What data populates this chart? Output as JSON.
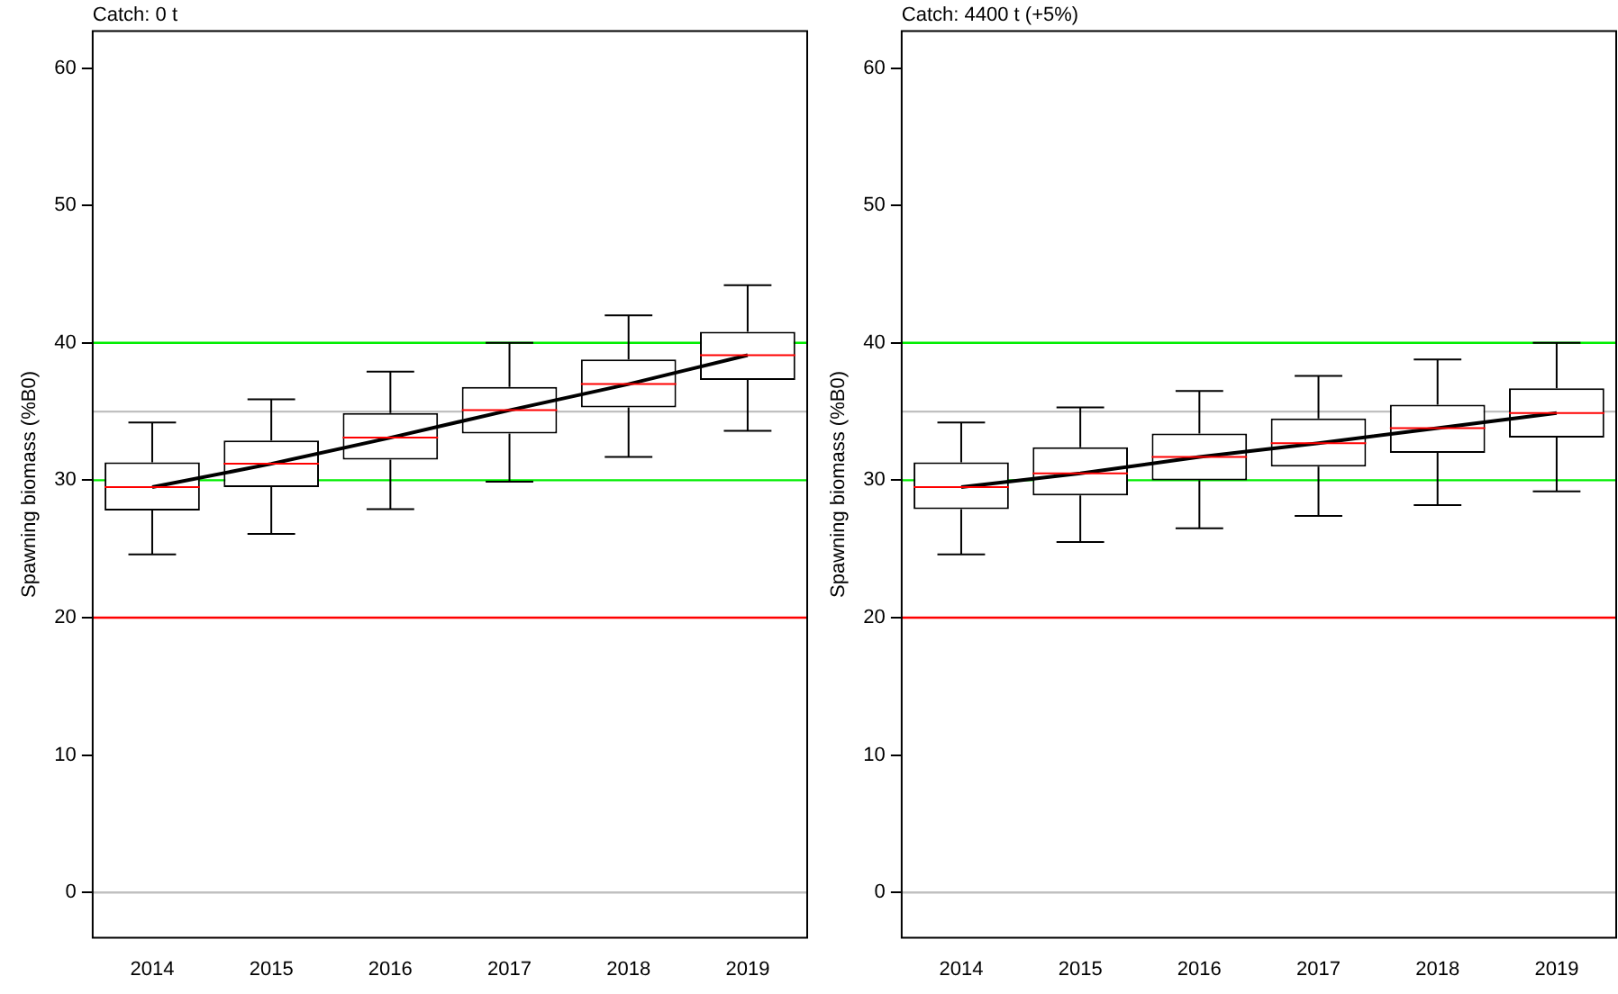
{
  "chart_data": [
    {
      "type": "box",
      "title": "Catch: 0 t",
      "ylabel": "Spawning biomass (%B0)",
      "categories": [
        "2014",
        "2015",
        "2016",
        "2017",
        "2018",
        "2019"
      ],
      "series": [
        {
          "type": "box",
          "color": "#000000",
          "boxes": [
            {
              "low": 24.6,
              "q1": 27.8,
              "median": 29.5,
              "q3": 31.3,
              "high": 34.2
            },
            {
              "low": 26.1,
              "q1": 29.5,
              "median": 31.2,
              "q3": 32.9,
              "high": 35.9
            },
            {
              "low": 27.9,
              "q1": 31.5,
              "median": 33.1,
              "q3": 34.9,
              "high": 37.9
            },
            {
              "low": 29.9,
              "q1": 33.4,
              "median": 35.1,
              "q3": 36.8,
              "high": 40.0
            },
            {
              "low": 31.7,
              "q1": 35.3,
              "median": 37.0,
              "q3": 38.8,
              "high": 42.0
            },
            {
              "low": 33.6,
              "q1": 37.3,
              "median": 39.1,
              "q3": 40.8,
              "high": 44.2
            }
          ]
        },
        {
          "type": "line",
          "color": "#000000",
          "values": [
            29.5,
            31.2,
            33.1,
            35.1,
            37.0,
            39.1
          ]
        }
      ],
      "ref_lines": [
        {
          "axis": "y",
          "value": 0,
          "color": "#c0c0c0"
        },
        {
          "axis": "y",
          "value": 20,
          "color": "#ff0000"
        },
        {
          "axis": "y",
          "value": 30,
          "color": "#00ee00"
        },
        {
          "axis": "y",
          "value": 35,
          "color": "#c0c0c0"
        },
        {
          "axis": "y",
          "value": 40,
          "color": "#00ee00"
        }
      ],
      "ylim": [
        -3.3,
        62.7
      ],
      "yticks": [
        0,
        10,
        20,
        30,
        40,
        50,
        60
      ],
      "grid": false,
      "legend": false
    },
    {
      "type": "box",
      "title": "Catch: 4400 t (+5%)",
      "ylabel": "Spawning biomass (%B0)",
      "categories": [
        "2014",
        "2015",
        "2016",
        "2017",
        "2018",
        "2019"
      ],
      "series": [
        {
          "type": "box",
          "color": "#000000",
          "boxes": [
            {
              "low": 24.6,
              "q1": 27.9,
              "median": 29.5,
              "q3": 31.3,
              "high": 34.2
            },
            {
              "low": 25.5,
              "q1": 28.9,
              "median": 30.5,
              "q3": 32.4,
              "high": 35.3
            },
            {
              "low": 26.5,
              "q1": 30.0,
              "median": 31.7,
              "q3": 33.4,
              "high": 36.5
            },
            {
              "low": 27.4,
              "q1": 31.0,
              "median": 32.7,
              "q3": 34.5,
              "high": 37.6
            },
            {
              "low": 28.2,
              "q1": 32.0,
              "median": 33.8,
              "q3": 35.5,
              "high": 38.8
            },
            {
              "low": 29.2,
              "q1": 33.1,
              "median": 34.9,
              "q3": 36.7,
              "high": 40.0
            }
          ]
        },
        {
          "type": "line",
          "color": "#000000",
          "values": [
            29.5,
            30.5,
            31.7,
            32.7,
            33.8,
            34.9
          ]
        }
      ],
      "ref_lines": [
        {
          "axis": "y",
          "value": 0,
          "color": "#c0c0c0"
        },
        {
          "axis": "y",
          "value": 20,
          "color": "#ff0000"
        },
        {
          "axis": "y",
          "value": 30,
          "color": "#00ee00"
        },
        {
          "axis": "y",
          "value": 35,
          "color": "#c0c0c0"
        },
        {
          "axis": "y",
          "value": 40,
          "color": "#00ee00"
        }
      ],
      "ylim": [
        -3.3,
        62.7
      ],
      "yticks": [
        0,
        10,
        20,
        30,
        40,
        50,
        60
      ],
      "grid": false,
      "legend": false
    }
  ]
}
